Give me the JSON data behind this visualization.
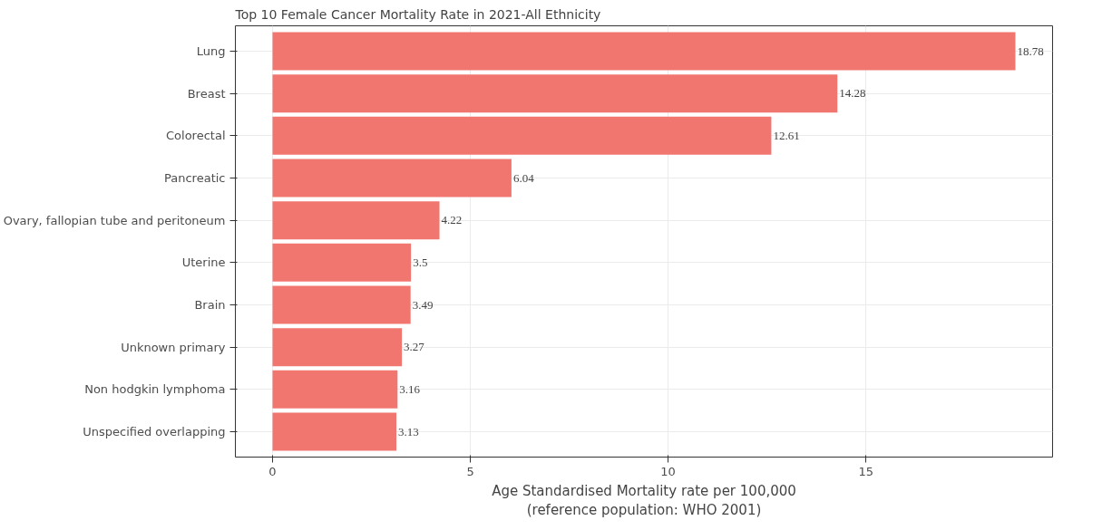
{
  "chart_data": {
    "type": "bar",
    "orientation": "horizontal",
    "title": "Top 10 Female Cancer Mortality Rate in 2021-All Ethnicity",
    "xlabel": "Age Standardised Mortality rate per 100,000\n(reference population: WHO 2001)",
    "categories": [
      "Lung",
      "Breast",
      "Colorectal",
      "Pancreatic",
      "Ovary, fallopian tube and peritoneum",
      "Uterine",
      "Brain",
      "Unknown primary",
      "Non hodgkin lymphoma",
      "Unspecified overlapping"
    ],
    "values": [
      18.78,
      14.28,
      12.61,
      6.04,
      4.22,
      3.5,
      3.49,
      3.27,
      3.16,
      3.13
    ],
    "color": "#f27670",
    "xlim": [
      -0.94,
      19.72
    ],
    "xticks": [
      0,
      5,
      10,
      15
    ],
    "grid": true,
    "data_labels": true
  }
}
